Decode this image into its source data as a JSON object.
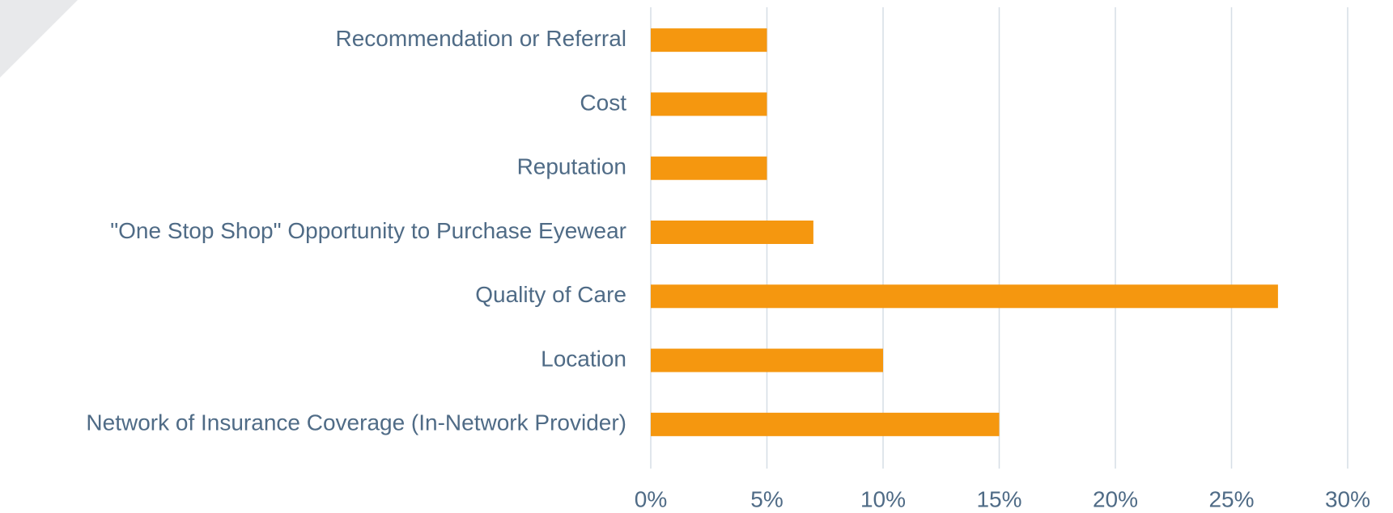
{
  "chart_data": {
    "type": "bar",
    "orientation": "horizontal",
    "categories": [
      "Recommendation or Referral",
      "Cost",
      "Reputation",
      "\"One Stop Shop\" Opportunity to Purchase Eyewear",
      "Quality of Care",
      "Location",
      "Network of Insurance Coverage (In-Network Provider)"
    ],
    "values": [
      5,
      5,
      5,
      7,
      27,
      10,
      15
    ],
    "color": "#f5970f",
    "xlim": [
      0,
      30
    ],
    "xticks": [
      {
        "value": 0,
        "label": "0%"
      },
      {
        "value": 5,
        "label": "5%"
      },
      {
        "value": 10,
        "label": "10%"
      },
      {
        "value": 15,
        "label": "15%"
      },
      {
        "value": 20,
        "label": "20%"
      },
      {
        "value": 25,
        "label": "25%"
      },
      {
        "value": 30,
        "label": "30%"
      }
    ],
    "grid": true
  }
}
